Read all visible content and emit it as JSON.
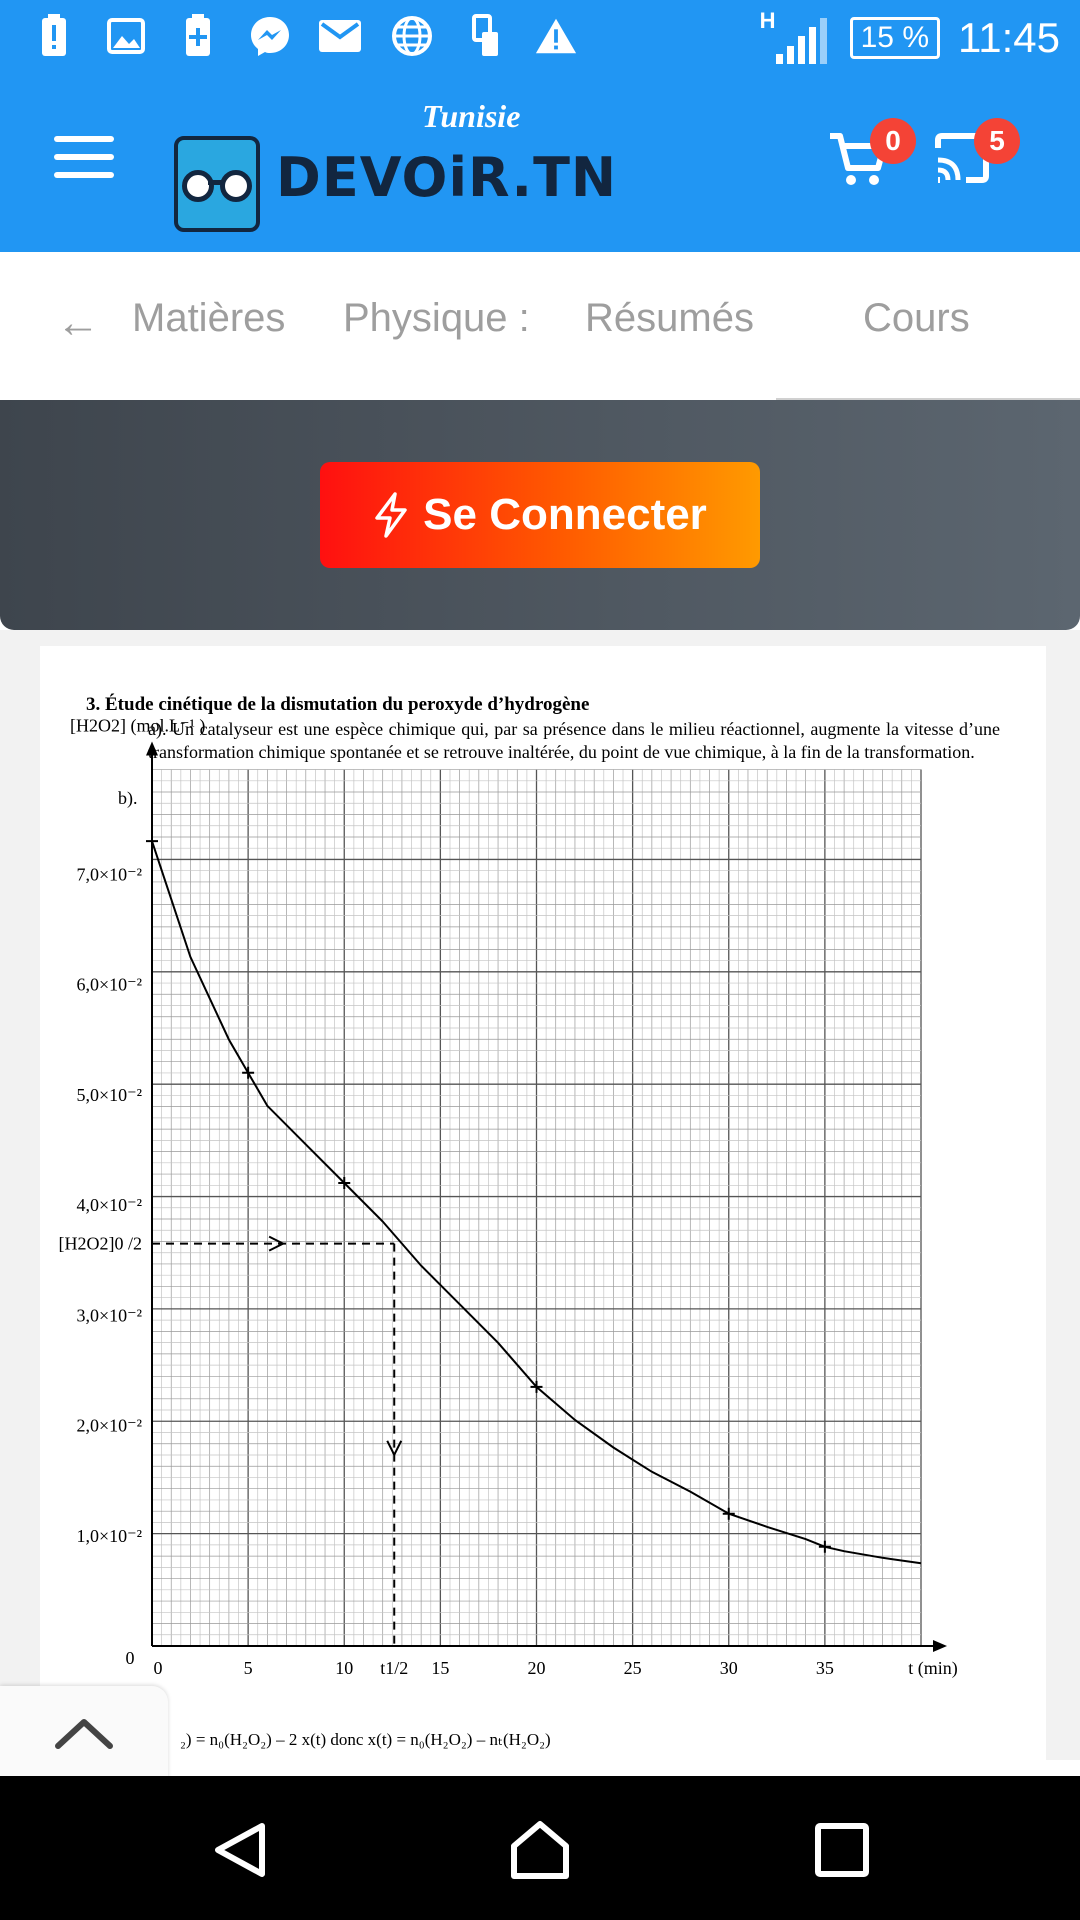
{
  "status_bar": {
    "network": "H",
    "battery": "15 %",
    "time": "11:45",
    "icons": [
      "battery-alert-icon",
      "image-icon",
      "battery-plus-icon",
      "messenger-icon",
      "mail-icon",
      "globe-icon",
      "device-icon",
      "warning-icon",
      "signal-icon"
    ]
  },
  "app_bar": {
    "logo_tagline": "Tunisie",
    "logo_text": "DEVOiR.TN",
    "cart_count": "0",
    "cast_count": "5"
  },
  "tabs": {
    "items": [
      "Matières",
      "Physique :",
      "Résumés",
      "Cours"
    ]
  },
  "login": {
    "label": "Se Connecter"
  },
  "document": {
    "title": "3.  Étude cinétique de la dismutation du peroxyde d’hydrogène",
    "para_a": "a). Un catalyseur est une espèce chimique qui, par sa présence dans le milieu réactionnel, augmente la vitesse d’une transformation chimique spontanée et se retrouve inaltérée, du point de vue chimique, à la fin de la transformation.",
    "para_b": "b).",
    "formula_tail": "₂) = n₀(H₂O₂) – 2 x(t) donc x(t) = n₀(H₂O₂) – nₜ(H₂O₂)"
  },
  "chart_data": {
    "type": "line",
    "ylabel": "[H2O2] (mol.L⁻¹ )",
    "xlabel": "t (min)",
    "x_ticks": [
      "0",
      "5",
      "10",
      "t1/2",
      "15",
      "20",
      "25",
      "30",
      "35"
    ],
    "y_ticks": [
      "0",
      "1,0×10⁻²",
      "2,0×10⁻²",
      "3,0×10⁻²",
      "4,0×10⁻²",
      "[H2O2]0 /2",
      "5,0×10⁻²",
      "6,0×10⁻²",
      "7,0×10⁻²"
    ],
    "xlim": [
      0,
      40
    ],
    "ylim": [
      0,
      0.08
    ],
    "grid": true,
    "series": [
      {
        "x": [
          0,
          2,
          4,
          5,
          6,
          8,
          10,
          12,
          14,
          16,
          18,
          20,
          22,
          24,
          26,
          28,
          30,
          32,
          34,
          35,
          36,
          38,
          40
        ],
        "y": [
          0.073,
          0.0625,
          0.055,
          0.052,
          0.049,
          0.0455,
          0.042,
          0.0385,
          0.0345,
          0.031,
          0.0275,
          0.0235,
          0.0205,
          0.018,
          0.0158,
          0.014,
          0.012,
          0.0108,
          0.0097,
          0.009,
          0.0086,
          0.008,
          0.0075
        ]
      }
    ],
    "measured_points": {
      "x": [
        0,
        5,
        10,
        20,
        30,
        35
      ],
      "y": [
        0.073,
        0.052,
        0.042,
        0.0235,
        0.012,
        0.009
      ]
    },
    "half_life": {
      "t": 12.6,
      "c": 0.0365
    }
  }
}
